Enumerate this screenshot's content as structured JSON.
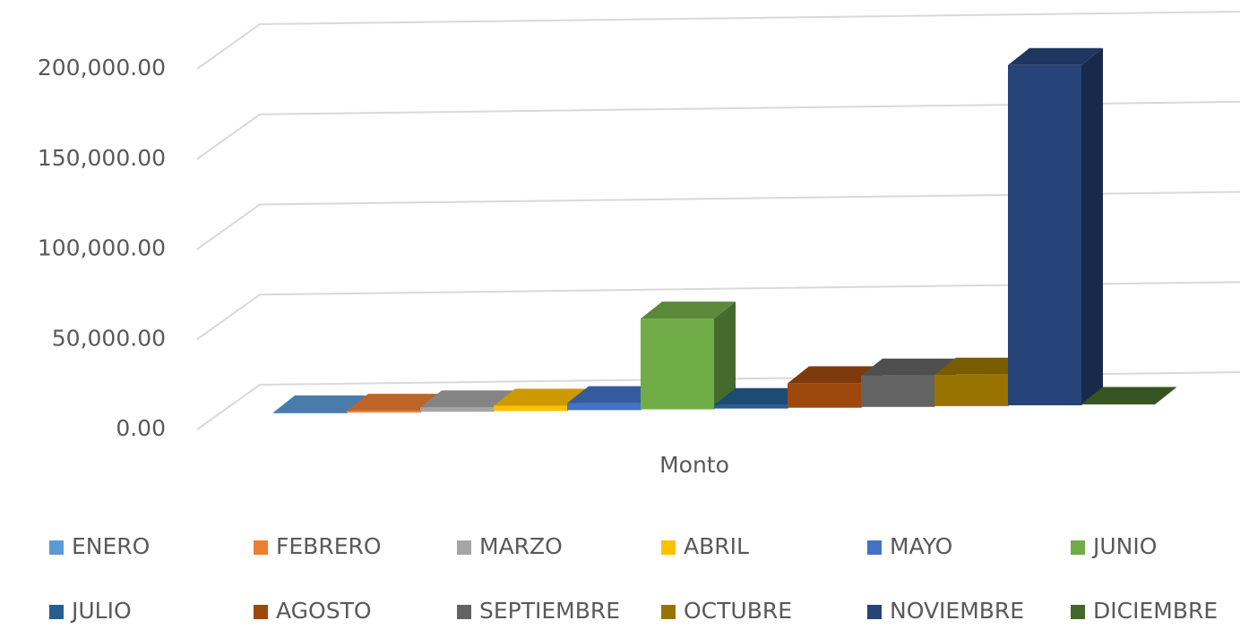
{
  "chart_data": {
    "type": "bar3d",
    "categories": [
      "Monto"
    ],
    "series": [
      {
        "name": "ENERO",
        "color": "#5b9bd5",
        "values": [
          500
        ]
      },
      {
        "name": "FEBRERO",
        "color": "#ed7d31",
        "values": [
          1000
        ]
      },
      {
        "name": "MARZO",
        "color": "#a5a5a5",
        "values": [
          2500
        ]
      },
      {
        "name": "ABRIL",
        "color": "#ffc000",
        "values": [
          3000
        ]
      },
      {
        "name": "MAYO",
        "color": "#4472c4",
        "values": [
          4000
        ]
      },
      {
        "name": "JUNIO",
        "color": "#70ad47",
        "values": [
          52000
        ]
      },
      {
        "name": "JULIO",
        "color": "#255e91",
        "values": [
          2000
        ]
      },
      {
        "name": "AGOSTO",
        "color": "#9e480e",
        "values": [
          14000
        ]
      },
      {
        "name": "SEPTIEMBRE",
        "color": "#636363",
        "values": [
          18000
        ]
      },
      {
        "name": "OCTUBRE",
        "color": "#997300",
        "values": [
          18000
        ]
      },
      {
        "name": "NOVIEMBRE",
        "color": "#264478",
        "values": [
          195000
        ]
      },
      {
        "name": "DICIEMBRE",
        "color": "#43682b",
        "values": [
          300
        ]
      }
    ],
    "ylim": [
      0,
      200000
    ],
    "yticks": [
      {
        "value": 0,
        "label": "0.00"
      },
      {
        "value": 50000,
        "label": "50,000.00"
      },
      {
        "value": 100000,
        "label": "100,000.00"
      },
      {
        "value": 150000,
        "label": "150,000.00"
      },
      {
        "value": 200000,
        "label": "200,000.00"
      }
    ],
    "grid": true,
    "legend": "bottom"
  }
}
